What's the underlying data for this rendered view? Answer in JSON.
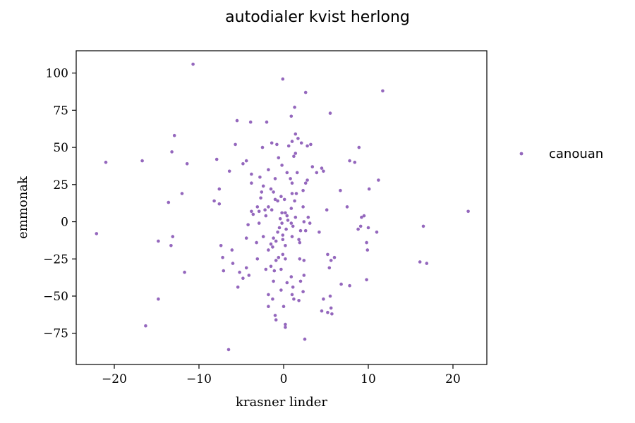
{
  "chart_data": {
    "type": "scatter",
    "title": "autodialer kvist herlong",
    "xlabel": "krasner linder",
    "ylabel": "emmonak",
    "xlim": [
      -24.5,
      24
    ],
    "ylim": [
      -96,
      115
    ],
    "xticks": [
      -20,
      -10,
      0,
      10,
      20
    ],
    "yticks": [
      -75,
      -50,
      -25,
      0,
      25,
      50,
      75,
      100
    ],
    "grid": false,
    "legend_position": "outside-right",
    "series": [
      {
        "name": "canouan",
        "color": "#9467bd",
        "points": [
          [
            -10.7,
            106
          ],
          [
            -0.1,
            96
          ],
          [
            11.7,
            88
          ],
          [
            2.6,
            87
          ],
          [
            1.3,
            77
          ],
          [
            5.5,
            73
          ],
          [
            0.9,
            71
          ],
          [
            -5.5,
            68
          ],
          [
            -3.9,
            67
          ],
          [
            -2.0,
            67
          ],
          [
            1.4,
            59
          ],
          [
            -12.9,
            58
          ],
          [
            1.7,
            56
          ],
          [
            1.0,
            54
          ],
          [
            2.1,
            53
          ],
          [
            -1.4,
            53
          ],
          [
            -5.7,
            52
          ],
          [
            0.6,
            51
          ],
          [
            -0.8,
            52
          ],
          [
            2.8,
            51
          ],
          [
            3.2,
            52
          ],
          [
            -2.5,
            50
          ],
          [
            8.9,
            50
          ],
          [
            -13.2,
            47
          ],
          [
            1.4,
            46
          ],
          [
            1.2,
            44
          ],
          [
            -0.6,
            43
          ],
          [
            -7.9,
            42
          ],
          [
            -16.7,
            41
          ],
          [
            7.8,
            41
          ],
          [
            -4.4,
            41
          ],
          [
            -11.4,
            39
          ],
          [
            -21.0,
            40
          ],
          [
            -0.2,
            38
          ],
          [
            8.4,
            40
          ],
          [
            -4.8,
            39
          ],
          [
            -1.8,
            35
          ],
          [
            3.4,
            37
          ],
          [
            -6.4,
            34
          ],
          [
            4.5,
            36
          ],
          [
            4.7,
            34
          ],
          [
            1.6,
            33
          ],
          [
            0.4,
            33
          ],
          [
            -3.8,
            32
          ],
          [
            3.9,
            33
          ],
          [
            -2.8,
            30
          ],
          [
            -1.0,
            29
          ],
          [
            0.8,
            29
          ],
          [
            2.8,
            28
          ],
          [
            11.2,
            28
          ],
          [
            -3.8,
            26
          ],
          [
            -2.4,
            24
          ],
          [
            1.0,
            26
          ],
          [
            2.6,
            26
          ],
          [
            -1.5,
            22
          ],
          [
            -2.6,
            20
          ],
          [
            -7.6,
            22
          ],
          [
            6.7,
            21
          ],
          [
            -1.2,
            20
          ],
          [
            10.1,
            22
          ],
          [
            1.0,
            19
          ],
          [
            1.5,
            19
          ],
          [
            2.3,
            21
          ],
          [
            -12.0,
            19
          ],
          [
            -0.3,
            17
          ],
          [
            -2.7,
            16
          ],
          [
            -1.0,
            15
          ],
          [
            0.1,
            15
          ],
          [
            -0.7,
            14
          ],
          [
            -13.6,
            13
          ],
          [
            -8.2,
            14
          ],
          [
            1.3,
            14
          ],
          [
            -7.6,
            12
          ],
          [
            7.5,
            10
          ],
          [
            -1.8,
            10
          ],
          [
            -3.1,
            10
          ],
          [
            2.3,
            10
          ],
          [
            -2.9,
            7
          ],
          [
            -1.4,
            8
          ],
          [
            -0.2,
            6
          ],
          [
            -2.2,
            8
          ],
          [
            0.9,
            9
          ],
          [
            -3.8,
            7
          ],
          [
            0.2,
            6
          ],
          [
            5.1,
            8
          ],
          [
            21.8,
            7
          ],
          [
            -3.6,
            5
          ],
          [
            -2.1,
            4
          ],
          [
            0.4,
            4
          ],
          [
            -0.4,
            2
          ],
          [
            2.9,
            3
          ],
          [
            1.4,
            3
          ],
          [
            9.5,
            4
          ],
          [
            9.2,
            3
          ],
          [
            0.5,
            1
          ],
          [
            -4.2,
            -2
          ],
          [
            -0.2,
            -1
          ],
          [
            -2.9,
            -1
          ],
          [
            2.4,
            0
          ],
          [
            0.9,
            -1
          ],
          [
            3.1,
            -1
          ],
          [
            9.1,
            -3
          ],
          [
            10.0,
            -4
          ],
          [
            16.5,
            -3
          ],
          [
            8.8,
            -5
          ],
          [
            1.1,
            -3
          ],
          [
            -0.5,
            -4
          ],
          [
            0.3,
            -5
          ],
          [
            2.6,
            -6
          ],
          [
            -0.7,
            -7
          ],
          [
            2.0,
            -6
          ],
          [
            4.2,
            -7
          ],
          [
            11.0,
            -7
          ],
          [
            -22.1,
            -8
          ],
          [
            -0.1,
            -9
          ],
          [
            1.0,
            -10
          ],
          [
            -2.4,
            -10
          ],
          [
            -13.1,
            -10
          ],
          [
            -4.4,
            -11
          ],
          [
            -1.2,
            -11
          ],
          [
            1.8,
            -12
          ],
          [
            -0.1,
            -12
          ],
          [
            -0.9,
            -13
          ],
          [
            -14.8,
            -13
          ],
          [
            -3.2,
            -14
          ],
          [
            1.9,
            -14
          ],
          [
            -1.5,
            -15
          ],
          [
            9.8,
            -14
          ],
          [
            -7.4,
            -16
          ],
          [
            -13.3,
            -16
          ],
          [
            0.2,
            -16
          ],
          [
            -1.3,
            -17
          ],
          [
            -1.8,
            -19
          ],
          [
            9.9,
            -19
          ],
          [
            -6.1,
            -19
          ],
          [
            5.2,
            -22
          ],
          [
            -0.1,
            -22
          ],
          [
            -0.6,
            -24
          ],
          [
            -3.1,
            -25
          ],
          [
            0.2,
            -25
          ],
          [
            6.0,
            -24
          ],
          [
            -7.2,
            -24
          ],
          [
            1.9,
            -25
          ],
          [
            2.4,
            -26
          ],
          [
            5.6,
            -26
          ],
          [
            -0.9,
            -26
          ],
          [
            16.1,
            -27
          ],
          [
            -6.0,
            -28
          ],
          [
            16.9,
            -28
          ],
          [
            -1.5,
            -30
          ],
          [
            5.4,
            -31
          ],
          [
            -4.4,
            -31
          ],
          [
            -2.1,
            -32
          ],
          [
            -0.3,
            -32
          ],
          [
            -1.1,
            -33
          ],
          [
            -11.7,
            -34
          ],
          [
            -7.1,
            -33
          ],
          [
            -5.2,
            -34
          ],
          [
            -4.1,
            -36
          ],
          [
            2.4,
            -36
          ],
          [
            0.9,
            -37
          ],
          [
            -4.8,
            -38
          ],
          [
            2.0,
            -40
          ],
          [
            9.8,
            -39
          ],
          [
            -1.2,
            -40
          ],
          [
            6.8,
            -42
          ],
          [
            0.4,
            -41
          ],
          [
            7.8,
            -43
          ],
          [
            -5.4,
            -44
          ],
          [
            1.1,
            -44
          ],
          [
            -0.3,
            -46
          ],
          [
            2.3,
            -47
          ],
          [
            1.0,
            -49
          ],
          [
            -1.8,
            -49
          ],
          [
            5.5,
            -50
          ],
          [
            -1.3,
            -52
          ],
          [
            1.2,
            -52
          ],
          [
            4.7,
            -52
          ],
          [
            -14.8,
            -52
          ],
          [
            1.8,
            -53
          ],
          [
            -1.8,
            -57
          ],
          [
            0.0,
            -57
          ],
          [
            5.6,
            -58
          ],
          [
            4.5,
            -60
          ],
          [
            5.2,
            -61
          ],
          [
            5.7,
            -62
          ],
          [
            -1.0,
            -63
          ],
          [
            -0.9,
            -66
          ],
          [
            0.2,
            -69
          ],
          [
            -16.3,
            -70
          ],
          [
            0.2,
            -71
          ],
          [
            2.5,
            -79
          ],
          [
            -6.5,
            -86
          ]
        ]
      }
    ]
  }
}
